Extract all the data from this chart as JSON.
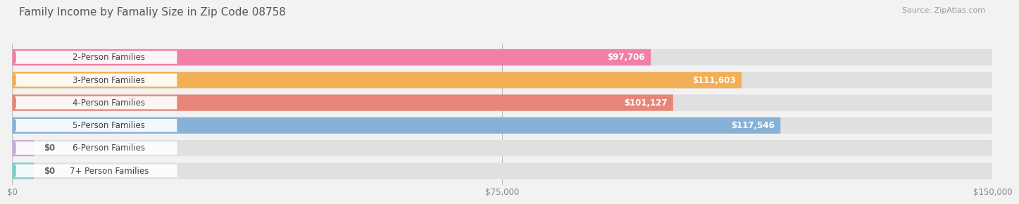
{
  "title": "Family Income by Famaliy Size in Zip Code 08758",
  "source": "Source: ZipAtlas.com",
  "categories": [
    "2-Person Families",
    "3-Person Families",
    "4-Person Families",
    "5-Person Families",
    "6-Person Families",
    "7+ Person Families"
  ],
  "values": [
    97706,
    111603,
    101127,
    117546,
    0,
    0
  ],
  "bar_colors": [
    "#F472A0",
    "#F5A942",
    "#E8796A",
    "#7AACD6",
    "#C3A8D8",
    "#74C9CE"
  ],
  "value_labels": [
    "$97,706",
    "$111,603",
    "$101,127",
    "$117,546",
    "$0",
    "$0"
  ],
  "xlim": [
    0,
    150000
  ],
  "xticks": [
    0,
    75000,
    150000
  ],
  "xticklabels": [
    "$0",
    "$75,000",
    "$150,000"
  ],
  "background_color": "#f2f2f2",
  "bar_bg_color": "#e0e0e0",
  "title_fontsize": 11,
  "source_fontsize": 8,
  "label_fontsize": 8.5,
  "value_fontsize": 8.5
}
